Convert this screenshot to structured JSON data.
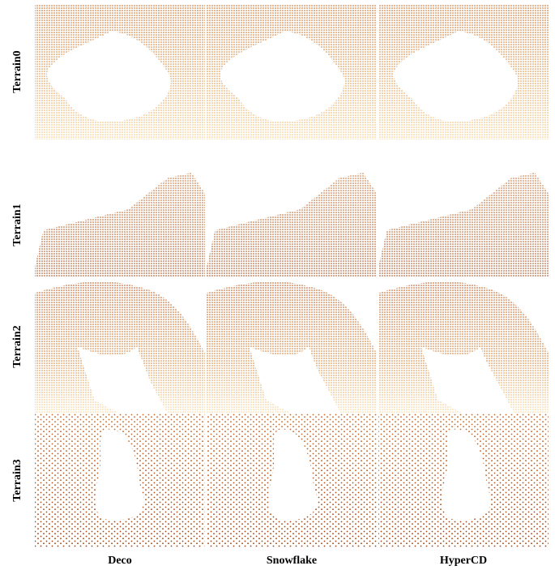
{
  "row_labels": [
    "Terrain0",
    "Terrain1",
    "Terrain2",
    "Terrain3"
  ],
  "column_labels": [
    "Deco",
    "Snowflake",
    "HyperCD"
  ]
}
